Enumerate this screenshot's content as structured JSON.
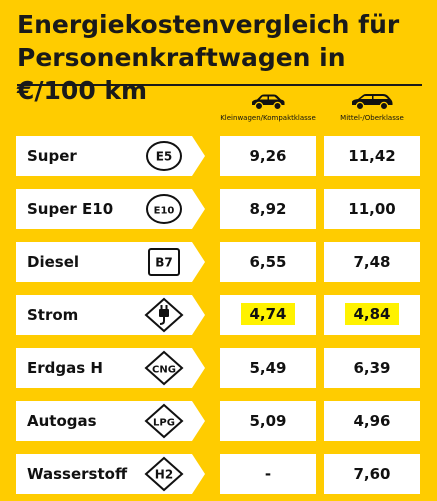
{
  "title_line1": "Energiekostenvergleich für",
  "title_line2": "Personenkraftwagen in €/100 km",
  "columns": [
    {
      "label": "Kleinwagen/Kompaktklasse",
      "icon": "small-car-icon"
    },
    {
      "label": "Mittel-/Oberklasse",
      "icon": "large-car-icon"
    }
  ],
  "rows": [
    {
      "fuel": "Super",
      "symbol": "E5",
      "symbol_shape": "circle",
      "small": "9,26",
      "large": "11,42",
      "highlight": false
    },
    {
      "fuel": "Super E10",
      "symbol": "E10",
      "symbol_shape": "circle",
      "small": "8,92",
      "large": "11,00",
      "highlight": false
    },
    {
      "fuel": "Diesel",
      "symbol": "B7",
      "symbol_shape": "square",
      "small": "6,55",
      "large": "7,48",
      "highlight": false
    },
    {
      "fuel": "Strom",
      "symbol": "",
      "symbol_shape": "plug",
      "small": "4,74",
      "large": "4,84",
      "highlight": true
    },
    {
      "fuel": "Erdgas H",
      "symbol": "CNG",
      "symbol_shape": "diamond",
      "small": "5,49",
      "large": "6,39",
      "highlight": false
    },
    {
      "fuel": "Autogas",
      "symbol": "LPG",
      "symbol_shape": "diamond",
      "small": "5,09",
      "large": "4,96",
      "highlight": false
    },
    {
      "fuel": "Wasserstoff",
      "symbol": "H2",
      "symbol_shape": "diamond",
      "small": "-",
      "large": "7,60",
      "highlight": false
    }
  ],
  "chart_data": {
    "type": "table",
    "title": "Energiekostenvergleich für Personenkraftwagen in €/100 km",
    "categories": [
      "Super",
      "Super E10",
      "Diesel",
      "Strom",
      "Erdgas H",
      "Autogas",
      "Wasserstoff"
    ],
    "series": [
      {
        "name": "Kleinwagen/Kompaktklasse",
        "values": [
          9.26,
          8.92,
          6.55,
          4.74,
          5.49,
          5.09,
          null
        ]
      },
      {
        "name": "Mittel-/Oberklasse",
        "values": [
          11.42,
          11.0,
          7.48,
          4.84,
          6.39,
          4.96,
          7.6
        ]
      }
    ],
    "highlighted_category": "Strom"
  },
  "colors": {
    "background": "#FFCC00",
    "cell": "#FFFFFF",
    "highlight": "#FFF200",
    "text": "#111111"
  }
}
